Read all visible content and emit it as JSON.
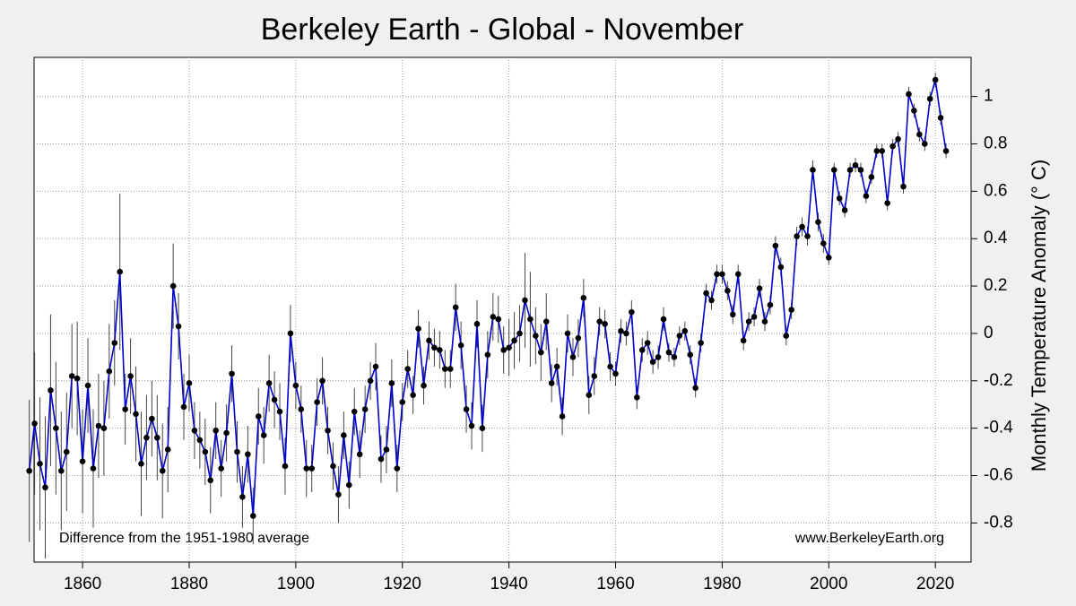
{
  "chart_data": {
    "type": "line",
    "title": "Berkeley Earth - Global - November",
    "ylabel": "Monthly Temperature Anomaly (° C)",
    "annotations": [
      "Difference from the 1951-1980 average",
      "www.BerkeleyEarth.org"
    ],
    "x": [
      1850,
      1851,
      1852,
      1853,
      1854,
      1855,
      1856,
      1857,
      1858,
      1859,
      1860,
      1861,
      1862,
      1863,
      1864,
      1865,
      1866,
      1867,
      1868,
      1869,
      1870,
      1871,
      1872,
      1873,
      1874,
      1875,
      1876,
      1877,
      1878,
      1879,
      1880,
      1881,
      1882,
      1883,
      1884,
      1885,
      1886,
      1887,
      1888,
      1889,
      1890,
      1891,
      1892,
      1893,
      1894,
      1895,
      1896,
      1897,
      1898,
      1899,
      1900,
      1901,
      1902,
      1903,
      1904,
      1905,
      1906,
      1907,
      1908,
      1909,
      1910,
      1911,
      1912,
      1913,
      1914,
      1915,
      1916,
      1917,
      1918,
      1919,
      1920,
      1921,
      1922,
      1923,
      1924,
      1925,
      1926,
      1927,
      1928,
      1929,
      1930,
      1931,
      1932,
      1933,
      1934,
      1935,
      1936,
      1937,
      1938,
      1939,
      1940,
      1941,
      1942,
      1943,
      1944,
      1945,
      1946,
      1947,
      1948,
      1949,
      1950,
      1951,
      1952,
      1953,
      1954,
      1955,
      1956,
      1957,
      1958,
      1959,
      1960,
      1961,
      1962,
      1963,
      1964,
      1965,
      1966,
      1967,
      1968,
      1969,
      1970,
      1971,
      1972,
      1973,
      1974,
      1975,
      1976,
      1977,
      1978,
      1979,
      1980,
      1981,
      1982,
      1983,
      1984,
      1985,
      1986,
      1987,
      1988,
      1989,
      1990,
      1991,
      1992,
      1993,
      1994,
      1995,
      1996,
      1997,
      1998,
      1999,
      2000,
      2001,
      2002,
      2003,
      2004,
      2005,
      2006,
      2007,
      2008,
      2009,
      2010,
      2011,
      2012,
      2013,
      2014,
      2015,
      2016,
      2017,
      2018,
      2019,
      2020,
      2021,
      2022
    ],
    "series": [
      {
        "name": "November",
        "color": "#0000cc",
        "marker_color": "#000000",
        "values": [
          -0.58,
          -0.38,
          -0.55,
          -0.65,
          -0.24,
          -0.4,
          -0.58,
          -0.5,
          -0.18,
          -0.19,
          -0.54,
          -0.22,
          -0.57,
          -0.39,
          -0.4,
          -0.16,
          -0.04,
          0.26,
          -0.32,
          -0.18,
          -0.34,
          -0.55,
          -0.44,
          -0.36,
          -0.44,
          -0.58,
          -0.49,
          0.2,
          0.03,
          -0.31,
          -0.21,
          -0.41,
          -0.45,
          -0.5,
          -0.62,
          -0.41,
          -0.57,
          -0.42,
          -0.17,
          -0.5,
          -0.69,
          -0.51,
          -0.77,
          -0.35,
          -0.43,
          -0.21,
          -0.28,
          -0.33,
          -0.56,
          0,
          -0.22,
          -0.32,
          -0.57,
          -0.57,
          -0.29,
          -0.2,
          -0.41,
          -0.56,
          -0.68,
          -0.43,
          -0.64,
          -0.33,
          -0.51,
          -0.32,
          -0.2,
          -0.14,
          -0.53,
          -0.49,
          -0.21,
          -0.57,
          -0.29,
          -0.15,
          -0.26,
          0.02,
          -0.22,
          -0.03,
          -0.06,
          -0.07,
          -0.15,
          -0.15,
          0.11,
          -0.05,
          -0.32,
          -0.39,
          0.04,
          -0.4,
          -0.09,
          0.07,
          0.06,
          -0.07,
          -0.06,
          -0.03,
          0,
          0.14,
          0.06,
          -0.01,
          -0.08,
          0.05,
          -0.21,
          -0.14,
          -0.35,
          0,
          -0.1,
          -0.02,
          0.15,
          -0.26,
          -0.18,
          0.05,
          0.04,
          -0.14,
          -0.17,
          0.01,
          0,
          0.09,
          -0.27,
          -0.07,
          -0.04,
          -0.12,
          -0.1,
          0.06,
          -0.08,
          -0.1,
          -0.01,
          0.01,
          -0.09,
          -0.23,
          -0.04,
          0.17,
          0.14,
          0.25,
          0.25,
          0.18,
          0.08,
          0.25,
          -0.03,
          0.05,
          0.07,
          0.19,
          0.05,
          0.12,
          0.37,
          0.28,
          -0.01,
          0.1,
          0.41,
          0.45,
          0.41,
          0.69,
          0.47,
          0.38,
          0.32,
          0.69,
          0.57,
          0.52,
          0.69,
          0.71,
          0.69,
          0.58,
          0.66,
          0.77,
          0.77,
          0.55,
          0.79,
          0.82,
          0.62,
          1.01,
          0.94,
          0.84,
          0.8,
          0.99,
          1.07,
          0.91,
          0.77
        ],
        "errors": [
          0.3,
          0.3,
          0.28,
          0.3,
          0.32,
          0.28,
          0.25,
          0.25,
          0.22,
          0.24,
          0.22,
          0.2,
          0.25,
          0.22,
          0.2,
          0.2,
          0.18,
          0.33,
          0.15,
          0.16,
          0.2,
          0.22,
          0.18,
          0.16,
          0.18,
          0.2,
          0.18,
          0.18,
          0.14,
          0.14,
          0.12,
          0.12,
          0.12,
          0.14,
          0.14,
          0.12,
          0.12,
          0.12,
          0.12,
          0.13,
          0.13,
          0.12,
          0.12,
          0.12,
          0.12,
          0.12,
          0.12,
          0.12,
          0.12,
          0.12,
          0.1,
          0.1,
          0.12,
          0.1,
          0.1,
          0.1,
          0.1,
          0.1,
          0.12,
          0.1,
          0.1,
          0.1,
          0.1,
          0.1,
          0.08,
          0.1,
          0.1,
          0.1,
          0.1,
          0.1,
          0.08,
          0.08,
          0.08,
          0.08,
          0.08,
          0.08,
          0.08,
          0.08,
          0.08,
          0.08,
          0.1,
          0.1,
          0.1,
          0.1,
          0.1,
          0.1,
          0.1,
          0.1,
          0.1,
          0.1,
          0.12,
          0.12,
          0.12,
          0.2,
          0.2,
          0.12,
          0.12,
          0.12,
          0.08,
          0.08,
          0.08,
          0.08,
          0.08,
          0.08,
          0.08,
          0.08,
          0.08,
          0.06,
          0.06,
          0.06,
          0.05,
          0.05,
          0.05,
          0.05,
          0.05,
          0.05,
          0.05,
          0.05,
          0.05,
          0.05,
          0.04,
          0.04,
          0.04,
          0.04,
          0.04,
          0.04,
          0.04,
          0.04,
          0.04,
          0.04,
          0.04,
          0.04,
          0.04,
          0.04,
          0.04,
          0.04,
          0.04,
          0.04,
          0.04,
          0.04,
          0.04,
          0.04,
          0.04,
          0.04,
          0.04,
          0.04,
          0.04,
          0.04,
          0.04,
          0.04,
          0.03,
          0.03,
          0.03,
          0.03,
          0.03,
          0.03,
          0.03,
          0.03,
          0.03,
          0.03,
          0.03,
          0.03,
          0.03,
          0.03,
          0.03,
          0.03,
          0.03,
          0.03,
          0.03,
          0.03,
          0.03,
          0.03,
          0.03
        ]
      }
    ],
    "xlim": [
      1850.9,
      2026.7
    ],
    "xticks": [
      1860,
      1880,
      1900,
      1920,
      1940,
      1960,
      1980,
      2000,
      2020
    ],
    "ylim": [
      -0.965,
      1.165
    ],
    "yticks": [
      -0.8,
      -0.6,
      -0.4,
      -0.2,
      0,
      0.2,
      0.4,
      0.6,
      0.8,
      1
    ],
    "grid": true
  }
}
